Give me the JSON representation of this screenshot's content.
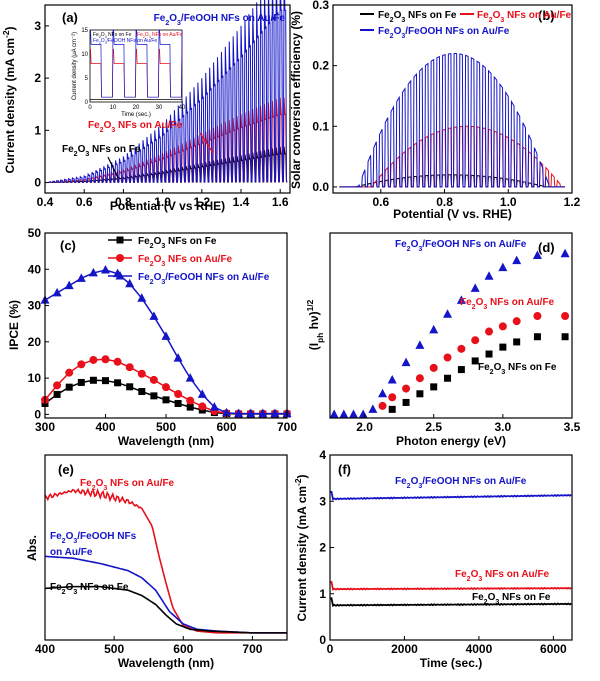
{
  "colors": {
    "black": "#000000",
    "red": "#e8101a",
    "blue": "#1414c8"
  },
  "chart_data": [
    {
      "panel": "(a)",
      "type": "line",
      "xlabel": "Potential (V vs RHE)",
      "ylabel": "Current density (mA cm⁻²)",
      "xlim": [
        0.4,
        1.65
      ],
      "ylim": [
        -0.2,
        3.4
      ],
      "xticks": [
        "0.4",
        "0.6",
        "0.8",
        "1.0",
        "1.2",
        "1.4",
        "1.6"
      ],
      "yticks": [
        "0",
        "1",
        "2",
        "3"
      ],
      "chopped": true,
      "series": [
        {
          "name": "Fe₂O₃ NFs on Fe",
          "color": "black",
          "x": [
            0.4,
            0.6,
            0.8,
            1.0,
            1.2,
            1.4,
            1.6
          ],
          "y": [
            0,
            0.02,
            0.08,
            0.18,
            0.3,
            0.42,
            0.55
          ]
        },
        {
          "name": "Fe₂O₃ NFs on Au/Fe",
          "color": "red",
          "x": [
            0.4,
            0.6,
            0.8,
            1.0,
            1.2,
            1.4,
            1.6
          ],
          "y": [
            0,
            0.05,
            0.2,
            0.45,
            0.75,
            1.05,
            1.3
          ]
        },
        {
          "name": "Fe₂O₃/FeOOH NFs on Au/Fe",
          "color": "blue",
          "x": [
            0.4,
            0.6,
            0.8,
            1.0,
            1.2,
            1.4,
            1.6
          ],
          "y": [
            0,
            0.1,
            0.4,
            0.9,
            1.6,
            2.4,
            3.3
          ]
        }
      ],
      "annotations": [
        "Fe₂O₃/FeOOH NFs on Au/Fe",
        "Fe₂O₃ NFs on Au/Fe",
        "Fe₂O₃ NFs on Fe"
      ],
      "inset": {
        "xlabel": "Time (sec.)",
        "ylabel": "Current density (μA cm⁻²)",
        "xticks": [
          "0",
          "10",
          "20",
          "30",
          "40"
        ],
        "yticks": [
          "0",
          "5",
          "10",
          "15"
        ],
        "legend": [
          "Fe₂O₃ NFs on Fe",
          "Fe₂O₃ NFs on Au/Fe",
          "Fe₂O₃/FeOOH NFs on Au/Fe"
        ]
      }
    },
    {
      "panel": "(b)",
      "type": "line",
      "xlabel": "Potential (V vs. RHE)",
      "ylabel": "Solar conversion efficiency (%)",
      "xlim": [
        0.45,
        1.2
      ],
      "ylim": [
        -0.01,
        0.3
      ],
      "xticks": [
        "0.6",
        "0.8",
        "1.0",
        "1.2"
      ],
      "yticks": [
        "0.0",
        "0.1",
        "0.2",
        "0.3"
      ],
      "series": [
        {
          "name": "Fe₂O₃ NFs on Fe",
          "color": "black",
          "peak_x": 0.82,
          "peak_y": 0.02
        },
        {
          "name": "Fe₂O₃ NFs on Au/Fe",
          "color": "red",
          "peak_x": 0.87,
          "peak_y": 0.1
        },
        {
          "name": "Fe₂O₃/FeOOH NFs on Au/Fe",
          "color": "blue",
          "peak_x": 0.83,
          "peak_y": 0.22
        }
      ]
    },
    {
      "panel": "(c)",
      "type": "line",
      "xlabel": "Wavelength (nm)",
      "ylabel": "IPCE (%)",
      "xlim": [
        300,
        700
      ],
      "ylim": [
        -1,
        50
      ],
      "xticks": [
        "300",
        "400",
        "500",
        "600",
        "700"
      ],
      "yticks": [
        "0",
        "10",
        "20",
        "30",
        "40",
        "50"
      ],
      "series": [
        {
          "name": "Fe₂O₃ NFs on Fe",
          "color": "black",
          "marker": "square",
          "x": [
            300,
            320,
            340,
            360,
            380,
            400,
            420,
            440,
            460,
            480,
            500,
            520,
            540,
            560,
            580,
            600,
            620,
            640,
            660,
            680,
            700
          ],
          "y": [
            3,
            5.5,
            7.5,
            8.8,
            9.4,
            9.3,
            8.7,
            7.6,
            6.3,
            5.1,
            4,
            3,
            2,
            1.2,
            0.5,
            0.2,
            0.1,
            0.1,
            0.1,
            0.1,
            0.1
          ]
        },
        {
          "name": "Fe₂O₃ NFs on Au/Fe",
          "color": "red",
          "marker": "circle",
          "x": [
            300,
            320,
            340,
            360,
            380,
            400,
            420,
            440,
            460,
            480,
            500,
            520,
            540,
            560,
            580,
            600,
            620,
            640,
            660,
            680,
            700
          ],
          "y": [
            4,
            8,
            11.5,
            13.8,
            15,
            15.2,
            14.5,
            13,
            11.2,
            9.5,
            7.5,
            5.6,
            3.8,
            2.2,
            0.9,
            0.3,
            0.2,
            0.2,
            0.2,
            0.2,
            0.2
          ]
        },
        {
          "name": "Fe₂O₃/FeOOH NFs on Au/Fe",
          "color": "blue",
          "marker": "triangle",
          "x": [
            300,
            320,
            340,
            360,
            380,
            400,
            420,
            440,
            460,
            480,
            500,
            520,
            540,
            560,
            580,
            600,
            620,
            640,
            660,
            680,
            700
          ],
          "y": [
            31.5,
            33.5,
            35.5,
            37.5,
            39,
            39.8,
            38.8,
            36,
            32,
            27,
            21.5,
            15.5,
            10,
            5.5,
            2,
            0.4,
            0.2,
            0.2,
            0.2,
            0.2,
            0.2
          ]
        }
      ]
    },
    {
      "panel": "(d)",
      "type": "scatter",
      "xlabel": "Photon energy (eV)",
      "ylabel": "(I_ph hν)^1/2",
      "xlim": [
        1.75,
        3.5
      ],
      "xticks": [
        "2.0",
        "2.5",
        "3.0",
        "3.5"
      ],
      "series": [
        {
          "name": "Fe₂O₃/FeOOH NFs on Au/Fe",
          "color": "blue",
          "marker": "triangle",
          "x": [
            1.78,
            1.85,
            1.92,
            1.99,
            2.06,
            2.13,
            2.2,
            2.3,
            2.4,
            2.5,
            2.6,
            2.7,
            2.8,
            2.9,
            3.0,
            3.1,
            3.25,
            3.45
          ],
          "y": [
            0,
            0,
            0,
            0,
            0.03,
            0.12,
            0.2,
            0.3,
            0.4,
            0.49,
            0.58,
            0.66,
            0.73,
            0.8,
            0.85,
            0.89,
            0.92,
            0.93
          ]
        },
        {
          "name": "Fe₂O₃ NFs on Au/Fe",
          "color": "red",
          "marker": "circle",
          "x": [
            2.13,
            2.2,
            2.3,
            2.4,
            2.5,
            2.6,
            2.7,
            2.8,
            2.9,
            3.0,
            3.1,
            3.25,
            3.45
          ],
          "y": [
            0.05,
            0.1,
            0.15,
            0.21,
            0.27,
            0.33,
            0.38,
            0.43,
            0.48,
            0.51,
            0.54,
            0.57,
            0.57
          ]
        },
        {
          "name": "Fe₂O₃ NFs on Fe",
          "color": "black",
          "marker": "square",
          "x": [
            2.2,
            2.3,
            2.4,
            2.5,
            2.6,
            2.7,
            2.8,
            2.9,
            3.0,
            3.1,
            3.25,
            3.45
          ],
          "y": [
            0.03,
            0.07,
            0.12,
            0.16,
            0.21,
            0.26,
            0.31,
            0.35,
            0.39,
            0.42,
            0.45,
            0.45
          ]
        }
      ]
    },
    {
      "panel": "(e)",
      "type": "line",
      "xlabel": "Wavelength (nm)",
      "ylabel": "Abs.",
      "xlim": [
        400,
        750
      ],
      "xticks": [
        "400",
        "500",
        "600",
        "700"
      ],
      "series": [
        {
          "name": "Fe₂O₃ NFs on Au/Fe",
          "color": "red",
          "x": [
            400,
            440,
            480,
            520,
            540,
            555,
            565,
            575,
            585,
            600,
            620,
            650,
            700,
            750
          ],
          "y": [
            0.78,
            0.82,
            0.8,
            0.76,
            0.72,
            0.62,
            0.45,
            0.3,
            0.16,
            0.06,
            0.03,
            0.02,
            0.02,
            0.02
          ]
        },
        {
          "name": "Fe₂O₃/FeOOH NFs on Au/Fe",
          "color": "blue",
          "x": [
            400,
            440,
            480,
            520,
            540,
            560,
            570,
            580,
            600,
            620,
            650,
            700,
            750
          ],
          "y": [
            0.45,
            0.44,
            0.41,
            0.37,
            0.33,
            0.26,
            0.2,
            0.14,
            0.07,
            0.04,
            0.03,
            0.02,
            0.02
          ]
        },
        {
          "name": "Fe₂O₃ NFs on Fe",
          "color": "black",
          "x": [
            400,
            440,
            480,
            520,
            540,
            560,
            575,
            590,
            610,
            640,
            700,
            750
          ],
          "y": [
            0.27,
            0.28,
            0.28,
            0.26,
            0.23,
            0.18,
            0.12,
            0.07,
            0.04,
            0.03,
            0.02,
            0.02
          ]
        }
      ]
    },
    {
      "panel": "(f)",
      "type": "line",
      "xlabel": "Time (sec.)",
      "ylabel": "Current density (mA cm⁻²)",
      "xlim": [
        0,
        6500
      ],
      "ylim": [
        0,
        4
      ],
      "xticks": [
        "0",
        "2000",
        "4000",
        "6000"
      ],
      "yticks": [
        "0",
        "1",
        "2",
        "3",
        "4"
      ],
      "series": [
        {
          "name": "Fe₂O₃/FeOOH NFs on Au/Fe",
          "color": "blue",
          "x": [
            0,
            6500
          ],
          "y": [
            3.05,
            3.13
          ]
        },
        {
          "name": "Fe₂O₃ NFs on Au/Fe",
          "color": "red",
          "x": [
            0,
            6500
          ],
          "y": [
            1.1,
            1.12
          ]
        },
        {
          "name": "Fe₂O₃ NFs on Fe",
          "color": "black",
          "x": [
            0,
            6500
          ],
          "y": [
            0.75,
            0.78
          ]
        }
      ]
    }
  ]
}
